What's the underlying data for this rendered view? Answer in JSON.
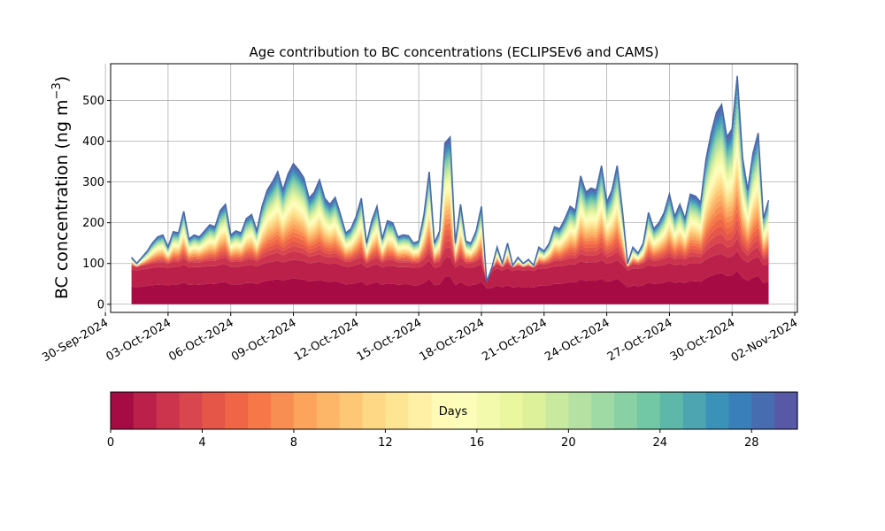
{
  "chart_data": {
    "type": "area",
    "stacked": true,
    "title": "Age contribution to BC concentrations (ECLIPSEv6 and CAMS)",
    "ylabel": "BC concentration (ng m⁻³)",
    "ylabel_main": "BC concentration (ng m",
    "ylabel_sup": "−3",
    "ylabel_end": ")",
    "xlabel": "",
    "grid": true,
    "ylim": [
      -20,
      590
    ],
    "xlim": [
      "2024-09-30T06:00",
      "2024-11-02T03:00"
    ],
    "y_ticks": [
      0,
      100,
      200,
      300,
      400,
      500
    ],
    "x_ticks": [
      {
        "date": "2024-09-30",
        "label": "30-Sep-2024"
      },
      {
        "date": "2024-10-03",
        "label": "03-Oct-2024"
      },
      {
        "date": "2024-10-06",
        "label": "06-Oct-2024"
      },
      {
        "date": "2024-10-09",
        "label": "09-Oct-2024"
      },
      {
        "date": "2024-10-12",
        "label": "12-Oct-2024"
      },
      {
        "date": "2024-10-15",
        "label": "15-Oct-2024"
      },
      {
        "date": "2024-10-18",
        "label": "18-Oct-2024"
      },
      {
        "date": "2024-10-21",
        "label": "21-Oct-2024"
      },
      {
        "date": "2024-10-24",
        "label": "24-Oct-2024"
      },
      {
        "date": "2024-10-27",
        "label": "27-Oct-2024"
      },
      {
        "date": "2024-10-30",
        "label": "30-Oct-2024"
      },
      {
        "date": "2024-11-02",
        "label": "02-Nov-2024"
      }
    ],
    "total": [
      [
        "2024-10-01T06:00",
        115
      ],
      [
        "2024-10-01T12:00",
        100
      ],
      [
        "2024-10-01T18:00",
        115
      ],
      [
        "2024-10-02T00:00",
        130
      ],
      [
        "2024-10-02T06:00",
        150
      ],
      [
        "2024-10-02T12:00",
        165
      ],
      [
        "2024-10-02T18:00",
        170
      ],
      [
        "2024-10-03T00:00",
        140
      ],
      [
        "2024-10-03T06:00",
        178
      ],
      [
        "2024-10-03T12:00",
        175
      ],
      [
        "2024-10-03T18:00",
        228
      ],
      [
        "2024-10-04T00:00",
        160
      ],
      [
        "2024-10-04T06:00",
        170
      ],
      [
        "2024-10-04T12:00",
        165
      ],
      [
        "2024-10-04T18:00",
        180
      ],
      [
        "2024-10-05T00:00",
        195
      ],
      [
        "2024-10-05T06:00",
        190
      ],
      [
        "2024-10-05T12:00",
        230
      ],
      [
        "2024-10-05T18:00",
        245
      ],
      [
        "2024-10-06T00:00",
        170
      ],
      [
        "2024-10-06T06:00",
        180
      ],
      [
        "2024-10-06T12:00",
        175
      ],
      [
        "2024-10-06T18:00",
        210
      ],
      [
        "2024-10-07T00:00",
        220
      ],
      [
        "2024-10-07T06:00",
        180
      ],
      [
        "2024-10-07T12:00",
        240
      ],
      [
        "2024-10-07T18:00",
        280
      ],
      [
        "2024-10-08T00:00",
        300
      ],
      [
        "2024-10-08T06:00",
        325
      ],
      [
        "2024-10-08T12:00",
        280
      ],
      [
        "2024-10-08T18:00",
        320
      ],
      [
        "2024-10-09T00:00",
        345
      ],
      [
        "2024-10-09T06:00",
        330
      ],
      [
        "2024-10-09T12:00",
        310
      ],
      [
        "2024-10-09T18:00",
        260
      ],
      [
        "2024-10-10T00:00",
        275
      ],
      [
        "2024-10-10T06:00",
        305
      ],
      [
        "2024-10-10T12:00",
        260
      ],
      [
        "2024-10-10T18:00",
        245
      ],
      [
        "2024-10-11T00:00",
        262
      ],
      [
        "2024-10-11T06:00",
        220
      ],
      [
        "2024-10-11T12:00",
        175
      ],
      [
        "2024-10-11T18:00",
        185
      ],
      [
        "2024-10-12T00:00",
        215
      ],
      [
        "2024-10-12T06:00",
        260
      ],
      [
        "2024-10-12T12:00",
        150
      ],
      [
        "2024-10-12T18:00",
        205
      ],
      [
        "2024-10-13T00:00",
        240
      ],
      [
        "2024-10-13T06:00",
        160
      ],
      [
        "2024-10-13T12:00",
        205
      ],
      [
        "2024-10-13T18:00",
        200
      ],
      [
        "2024-10-14T00:00",
        165
      ],
      [
        "2024-10-14T06:00",
        170
      ],
      [
        "2024-10-14T12:00",
        168
      ],
      [
        "2024-10-14T18:00",
        150
      ],
      [
        "2024-10-15T00:00",
        155
      ],
      [
        "2024-10-15T06:00",
        220
      ],
      [
        "2024-10-15T12:00",
        325
      ],
      [
        "2024-10-15T18:00",
        150
      ],
      [
        "2024-10-16T00:00",
        180
      ],
      [
        "2024-10-16T06:00",
        395
      ],
      [
        "2024-10-16T12:00",
        410
      ],
      [
        "2024-10-16T18:00",
        150
      ],
      [
        "2024-10-17T00:00",
        245
      ],
      [
        "2024-10-17T06:00",
        155
      ],
      [
        "2024-10-17T12:00",
        150
      ],
      [
        "2024-10-17T18:00",
        180
      ],
      [
        "2024-10-18T00:00",
        240
      ],
      [
        "2024-10-18T06:00",
        55
      ],
      [
        "2024-10-18T12:00",
        90
      ],
      [
        "2024-10-18T18:00",
        140
      ],
      [
        "2024-10-19T00:00",
        100
      ],
      [
        "2024-10-19T06:00",
        150
      ],
      [
        "2024-10-19T12:00",
        95
      ],
      [
        "2024-10-19T18:00",
        115
      ],
      [
        "2024-10-20T00:00",
        100
      ],
      [
        "2024-10-20T06:00",
        110
      ],
      [
        "2024-10-20T12:00",
        95
      ],
      [
        "2024-10-20T18:00",
        140
      ],
      [
        "2024-10-21T00:00",
        130
      ],
      [
        "2024-10-21T06:00",
        150
      ],
      [
        "2024-10-21T12:00",
        190
      ],
      [
        "2024-10-21T18:00",
        185
      ],
      [
        "2024-10-22T00:00",
        210
      ],
      [
        "2024-10-22T06:00",
        240
      ],
      [
        "2024-10-22T12:00",
        230
      ],
      [
        "2024-10-22T18:00",
        315
      ],
      [
        "2024-10-23T00:00",
        275
      ],
      [
        "2024-10-23T06:00",
        285
      ],
      [
        "2024-10-23T12:00",
        280
      ],
      [
        "2024-10-23T18:00",
        340
      ],
      [
        "2024-10-24T00:00",
        250
      ],
      [
        "2024-10-24T06:00",
        280
      ],
      [
        "2024-10-24T12:00",
        340
      ],
      [
        "2024-10-24T18:00",
        230
      ],
      [
        "2024-10-25T00:00",
        100
      ],
      [
        "2024-10-25T06:00",
        140
      ],
      [
        "2024-10-25T12:00",
        125
      ],
      [
        "2024-10-25T18:00",
        150
      ],
      [
        "2024-10-26T00:00",
        225
      ],
      [
        "2024-10-26T06:00",
        185
      ],
      [
        "2024-10-26T12:00",
        200
      ],
      [
        "2024-10-26T18:00",
        225
      ],
      [
        "2024-10-27T00:00",
        270
      ],
      [
        "2024-10-27T06:00",
        215
      ],
      [
        "2024-10-27T12:00",
        245
      ],
      [
        "2024-10-27T18:00",
        210
      ],
      [
        "2024-10-28T00:00",
        270
      ],
      [
        "2024-10-28T06:00",
        265
      ],
      [
        "2024-10-28T12:00",
        250
      ],
      [
        "2024-10-28T18:00",
        355
      ],
      [
        "2024-10-29T00:00",
        420
      ],
      [
        "2024-10-29T06:00",
        470
      ],
      [
        "2024-10-29T12:00",
        490
      ],
      [
        "2024-10-29T18:00",
        410
      ],
      [
        "2024-10-30T00:00",
        430
      ],
      [
        "2024-10-30T06:00",
        560
      ],
      [
        "2024-10-30T12:00",
        360
      ],
      [
        "2024-10-30T18:00",
        280
      ],
      [
        "2024-10-31T00:00",
        370
      ],
      [
        "2024-10-31T06:00",
        420
      ],
      [
        "2024-10-31T12:00",
        210
      ],
      [
        "2024-10-31T18:00",
        255
      ]
    ],
    "colorbar": {
      "label": "Days",
      "min": 0,
      "max": 30,
      "levels": 30,
      "ticks": [
        0,
        4,
        8,
        12,
        16,
        20,
        24,
        28
      ],
      "colormap": "Spectral",
      "colors": [
        "#9e0142",
        "#d53e4f",
        "#f46d43",
        "#fdae61",
        "#fee08b",
        "#ffffbf",
        "#e6f598",
        "#abdda4",
        "#66c2a5",
        "#3288bd",
        "#5e4fa2"
      ]
    }
  }
}
